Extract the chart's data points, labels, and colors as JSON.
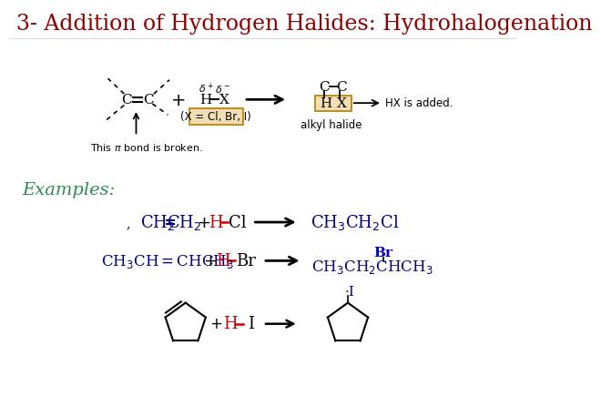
{
  "title": "3- Addition of Hydrogen Halides: Hydrohalogenation",
  "title_color": "#8B0000",
  "title_fontsize": 17,
  "bg_color": "#ffffff",
  "examples_label": "Examples:",
  "examples_color": "#2E8B57",
  "examples_fontsize": 14,
  "formula_color": "#000080",
  "hx_red": "#CC0000",
  "br_blue": "#0000CC",
  "iodine_blue": "#000080"
}
